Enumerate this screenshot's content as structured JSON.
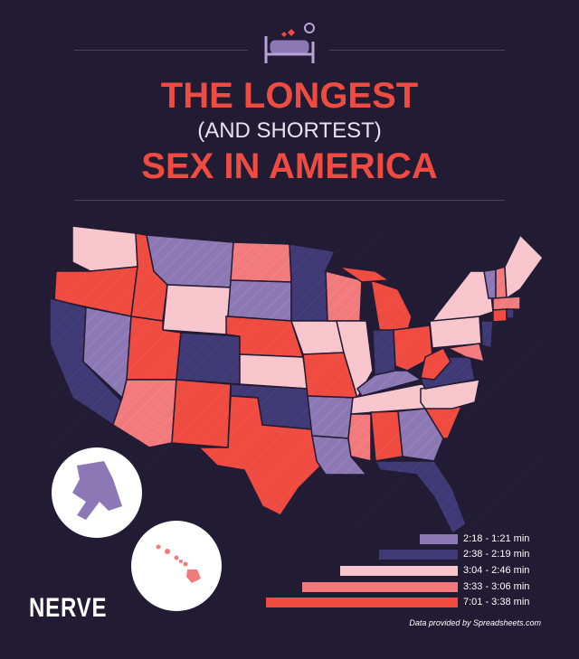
{
  "title": {
    "line1": "THE LONGEST",
    "line2": "(AND SHORTEST)",
    "line3": "SEX IN AMERICA"
  },
  "legend": [
    {
      "label": "2:18 - 1:21 min",
      "color": "#8b78b4"
    },
    {
      "label": "2:38 - 2:19 min",
      "color": "#3f3975"
    },
    {
      "label": "3:04 - 2:46 min",
      "color": "#f7c5cb"
    },
    {
      "label": "3:33 - 3:06 min",
      "color": "#f2797c"
    },
    {
      "label": "7:01 - 3:38 min",
      "color": "#ef4b40"
    }
  ],
  "credit": {
    "prefix": "Data provided by ",
    "source": "Spreadsheets.com"
  },
  "logo": "NERVE",
  "icon": "bed-icon"
}
